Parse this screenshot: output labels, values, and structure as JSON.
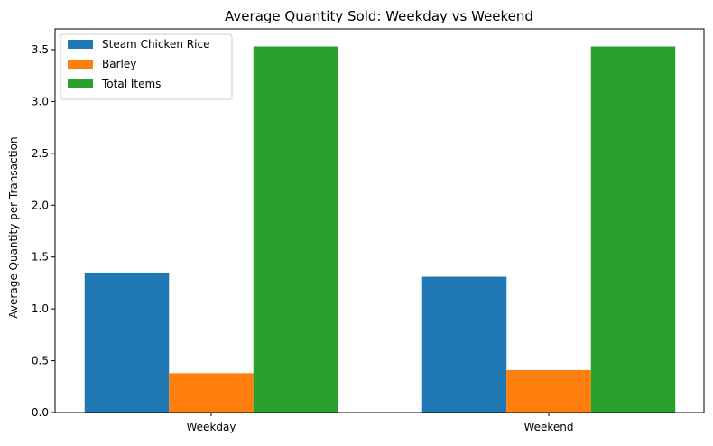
{
  "chart_data": {
    "type": "bar",
    "title": "Average Quantity Sold: Weekday vs Weekend",
    "xlabel": "",
    "ylabel": "Average Quantity per Transaction",
    "categories": [
      "Weekday",
      "Weekend"
    ],
    "series": [
      {
        "name": "Steam Chicken Rice",
        "values": [
          1.35,
          1.31
        ],
        "color": "#1f77b4"
      },
      {
        "name": "Barley",
        "values": [
          0.38,
          0.41
        ],
        "color": "#ff7f0e"
      },
      {
        "name": "Total Items",
        "values": [
          3.53,
          3.53
        ],
        "color": "#2ca02c"
      }
    ],
    "ylim": [
      0,
      3.7
    ],
    "yticks": [
      "0.0",
      "0.5",
      "1.0",
      "1.5",
      "2.0",
      "2.5",
      "3.0",
      "3.5"
    ],
    "grid": false,
    "legend_position": "top-left"
  }
}
